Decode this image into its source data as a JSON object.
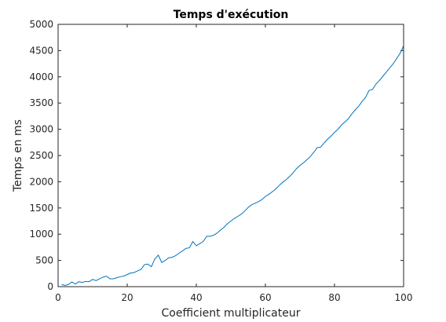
{
  "chart_data": {
    "type": "line",
    "title": "Temps d'exécution",
    "xlabel": "Coefficient multiplicateur",
    "ylabel": "Temps en ms",
    "xlim": [
      0,
      100
    ],
    "ylim": [
      0,
      5000
    ],
    "xticks": [
      0,
      20,
      40,
      60,
      80,
      100
    ],
    "yticks": [
      0,
      500,
      1000,
      1500,
      2000,
      2500,
      3000,
      3500,
      4000,
      4500,
      5000
    ],
    "grid": false,
    "line_color": "#0072bd",
    "series": [
      {
        "x": [
          1,
          2,
          3,
          4,
          5,
          6,
          7,
          8,
          9,
          10,
          11,
          12,
          13,
          14,
          15,
          16,
          17,
          18,
          19,
          20,
          21,
          22,
          23,
          24,
          25,
          26,
          27,
          28,
          29,
          30,
          31,
          32,
          33,
          34,
          35,
          36,
          37,
          38,
          39,
          40,
          41,
          42,
          43,
          44,
          45,
          46,
          47,
          48,
          49,
          50,
          51,
          52,
          53,
          54,
          55,
          56,
          57,
          58,
          59,
          60,
          61,
          62,
          63,
          64,
          65,
          66,
          67,
          68,
          69,
          70,
          71,
          72,
          73,
          74,
          75,
          76,
          77,
          78,
          79,
          80,
          81,
          82,
          83,
          84,
          85,
          86,
          87,
          88,
          89,
          90,
          91,
          92,
          93,
          94,
          95,
          96,
          97,
          98,
          99,
          100
        ],
        "values": [
          40,
          25,
          40,
          90,
          50,
          95,
          80,
          100,
          95,
          140,
          115,
          150,
          180,
          200,
          150,
          150,
          170,
          190,
          200,
          230,
          260,
          270,
          300,
          330,
          420,
          430,
          380,
          530,
          600,
          460,
          500,
          550,
          560,
          590,
          640,
          680,
          730,
          740,
          860,
          780,
          820,
          860,
          960,
          960,
          980,
          1020,
          1080,
          1130,
          1200,
          1250,
          1300,
          1340,
          1380,
          1440,
          1510,
          1560,
          1590,
          1620,
          1660,
          1720,
          1760,
          1810,
          1860,
          1930,
          1990,
          2040,
          2100,
          2170,
          2250,
          2310,
          2360,
          2420,
          2480,
          2560,
          2650,
          2660,
          2740,
          2810,
          2870,
          2940,
          3000,
          3080,
          3140,
          3200,
          3290,
          3370,
          3440,
          3530,
          3610,
          3740,
          3760,
          3860,
          3930,
          4010,
          4090,
          4170,
          4250,
          4350,
          4450,
          4590
        ]
      }
    ]
  }
}
